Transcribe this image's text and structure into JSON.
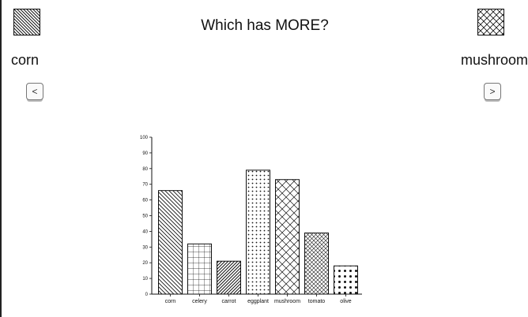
{
  "question": "Which has MORE?",
  "left_option": {
    "label": "corn",
    "pattern_icon": "diagonal-lines-pattern-icon",
    "nav_button": "<"
  },
  "right_option": {
    "label": "mushroom",
    "pattern_icon": "crosshatch-pattern-icon",
    "nav_button": ">"
  },
  "chart_data": {
    "type": "bar",
    "categories": [
      "corn",
      "celery",
      "carrot",
      "eggplant",
      "mushroom",
      "tomato",
      "olive"
    ],
    "values": [
      66,
      32,
      21,
      79,
      73,
      39,
      18
    ],
    "patterns": [
      "diagonal-lines",
      "grid",
      "diagonal-lines-dense",
      "dots-small",
      "crosshatch",
      "crosshatch-dense",
      "dots-large"
    ],
    "ylim": [
      0,
      100
    ],
    "yticks": [
      0,
      10,
      20,
      30,
      40,
      50,
      60,
      70,
      80,
      90,
      100
    ],
    "title": "",
    "xlabel": "",
    "ylabel": "",
    "grid": false,
    "bar_fill": "#ffffff",
    "pattern_color": "#111111"
  }
}
